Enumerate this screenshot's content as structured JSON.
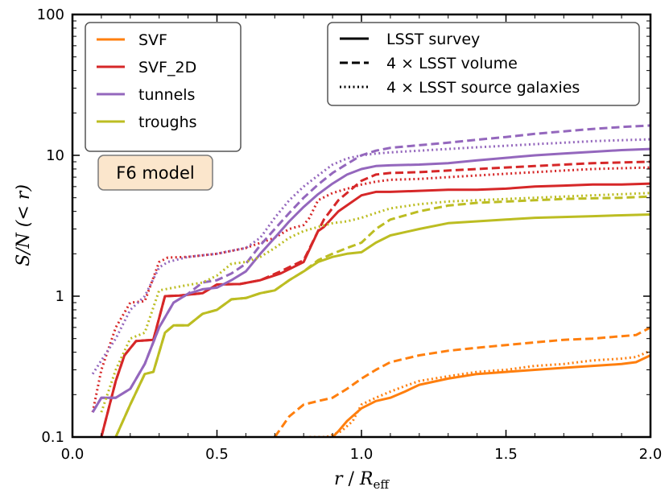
{
  "chart_data": {
    "type": "line",
    "title": "",
    "xlabel_main": "r",
    "xlabel_sep": " / ",
    "xlabel_R": "R",
    "xlabel_sub": "eff",
    "ylabel": "S/N (< r)",
    "xlim": [
      0.0,
      2.0
    ],
    "ylim": [
      0.1,
      100
    ],
    "yscale": "log",
    "x_ticks": [
      {
        "value": 0.0,
        "label": "0.0"
      },
      {
        "value": 0.5,
        "label": "0.5"
      },
      {
        "value": 1.0,
        "label": "1.0"
      },
      {
        "value": 1.5,
        "label": "1.5"
      },
      {
        "value": 2.0,
        "label": "2.0"
      }
    ],
    "y_ticks": [
      {
        "value": 0.1,
        "label": "0.1"
      },
      {
        "value": 1,
        "label": "1"
      },
      {
        "value": 10,
        "label": "10"
      },
      {
        "value": 100,
        "label": "100"
      }
    ],
    "annotation": "F6 model",
    "legend_colors": [
      {
        "label": "SVF",
        "color": "#ff7f0e"
      },
      {
        "label": "SVF_2D",
        "color": "#d62728"
      },
      {
        "label": "tunnels",
        "color": "#9467bd"
      },
      {
        "label": "troughs",
        "color": "#bcbd22"
      }
    ],
    "legend_styles": [
      {
        "label": "LSST survey",
        "dash": "solid"
      },
      {
        "label": "4 × LSST volume",
        "dash": "dashed"
      },
      {
        "label": "4 × LSST source galaxies",
        "dash": "dotted"
      }
    ],
    "series": [
      {
        "name": "SVF",
        "style": "LSST survey",
        "color": "#ff7f0e",
        "dash": "solid",
        "x": [
          0.9,
          0.92,
          0.95,
          1.0,
          1.05,
          1.1,
          1.15,
          1.2,
          1.3,
          1.4,
          1.5,
          1.6,
          1.7,
          1.8,
          1.9,
          1.95,
          2.0
        ],
        "y": [
          0.1,
          0.11,
          0.13,
          0.16,
          0.18,
          0.19,
          0.21,
          0.235,
          0.26,
          0.28,
          0.29,
          0.3,
          0.31,
          0.32,
          0.33,
          0.34,
          0.38
        ]
      },
      {
        "name": "SVF",
        "style": "4 × LSST volume",
        "color": "#ff7f0e",
        "dash": "dashed",
        "x": [
          0.7,
          0.75,
          0.8,
          0.85,
          0.9,
          0.95,
          1.0,
          1.05,
          1.1,
          1.2,
          1.3,
          1.4,
          1.5,
          1.6,
          1.7,
          1.8,
          1.9,
          1.95,
          2.0
        ],
        "y": [
          0.1,
          0.14,
          0.17,
          0.18,
          0.19,
          0.22,
          0.26,
          0.3,
          0.34,
          0.38,
          0.41,
          0.43,
          0.45,
          0.47,
          0.49,
          0.5,
          0.52,
          0.53,
          0.6
        ]
      },
      {
        "name": "SVF",
        "style": "4 × LSST source galaxies",
        "color": "#ff7f0e",
        "dash": "dotted",
        "x": [
          0.82,
          0.88,
          0.93,
          0.97,
          1.0,
          1.05,
          1.1,
          1.15,
          1.2,
          1.3,
          1.4,
          1.5,
          1.6,
          1.7,
          1.8,
          1.9,
          1.95,
          2.0
        ],
        "y": [
          0.1,
          0.1,
          0.11,
          0.13,
          0.17,
          0.19,
          0.21,
          0.23,
          0.25,
          0.27,
          0.29,
          0.3,
          0.32,
          0.33,
          0.35,
          0.36,
          0.37,
          0.41
        ]
      },
      {
        "name": "SVF_2D",
        "style": "LSST survey",
        "color": "#d62728",
        "dash": "solid",
        "x": [
          0.1,
          0.15,
          0.18,
          0.22,
          0.28,
          0.32,
          0.37,
          0.45,
          0.5,
          0.58,
          0.65,
          0.72,
          0.8,
          0.85,
          0.87,
          0.92,
          1.0,
          1.05,
          1.1,
          1.2,
          1.3,
          1.4,
          1.5,
          1.6,
          1.7,
          1.8,
          1.9,
          2.0
        ],
        "y": [
          0.1,
          0.25,
          0.38,
          0.48,
          0.49,
          1.0,
          1.01,
          1.05,
          1.21,
          1.22,
          1.3,
          1.45,
          1.75,
          2.9,
          3.1,
          4.0,
          5.2,
          5.5,
          5.5,
          5.6,
          5.7,
          5.7,
          5.8,
          6.0,
          6.1,
          6.2,
          6.2,
          6.3
        ]
      },
      {
        "name": "SVF_2D",
        "style": "4 × LSST volume",
        "color": "#d62728",
        "dash": "dashed",
        "x": [
          0.1,
          0.15,
          0.18,
          0.22,
          0.28,
          0.32,
          0.37,
          0.45,
          0.5,
          0.58,
          0.65,
          0.72,
          0.8,
          0.85,
          0.87,
          0.92,
          1.0,
          1.05,
          1.1,
          1.2,
          1.3,
          1.4,
          1.5,
          1.6,
          1.7,
          1.8,
          1.9,
          2.0
        ],
        "y": [
          0.1,
          0.25,
          0.38,
          0.48,
          0.49,
          1.0,
          1.01,
          1.05,
          1.21,
          1.22,
          1.3,
          1.5,
          1.8,
          2.9,
          3.5,
          4.8,
          6.6,
          7.3,
          7.5,
          7.6,
          7.8,
          8.0,
          8.2,
          8.4,
          8.6,
          8.8,
          8.9,
          9.0
        ]
      },
      {
        "name": "SVF_2D",
        "style": "4 × LSST source galaxies",
        "color": "#d62728",
        "dash": "dotted",
        "x": [
          0.07,
          0.1,
          0.15,
          0.2,
          0.25,
          0.3,
          0.33,
          0.4,
          0.5,
          0.6,
          0.7,
          0.75,
          0.8,
          0.82,
          0.85,
          0.9,
          1.0,
          1.05,
          1.1,
          1.2,
          1.3,
          1.4,
          1.5,
          1.6,
          1.7,
          1.8,
          1.9,
          2.0
        ],
        "y": [
          0.15,
          0.3,
          0.6,
          0.9,
          0.92,
          1.75,
          1.88,
          1.9,
          2.0,
          2.2,
          2.6,
          3.0,
          3.2,
          3.6,
          4.8,
          5.4,
          6.2,
          6.5,
          6.7,
          6.8,
          7.0,
          7.2,
          7.4,
          7.6,
          7.8,
          8.0,
          8.1,
          8.2
        ]
      },
      {
        "name": "tunnels",
        "style": "LSST survey",
        "color": "#9467bd",
        "dash": "solid",
        "x": [
          0.07,
          0.1,
          0.15,
          0.2,
          0.25,
          0.3,
          0.35,
          0.4,
          0.45,
          0.5,
          0.55,
          0.6,
          0.65,
          0.7,
          0.75,
          0.8,
          0.85,
          0.9,
          0.95,
          1.0,
          1.05,
          1.1,
          1.2,
          1.3,
          1.4,
          1.5,
          1.6,
          1.7,
          1.8,
          1.9,
          2.0
        ],
        "y": [
          0.15,
          0.19,
          0.19,
          0.22,
          0.33,
          0.6,
          0.9,
          1.04,
          1.12,
          1.15,
          1.3,
          1.5,
          2.0,
          2.6,
          3.4,
          4.3,
          5.3,
          6.3,
          7.3,
          8.0,
          8.4,
          8.5,
          8.6,
          8.8,
          9.2,
          9.6,
          10.0,
          10.3,
          10.6,
          10.9,
          11.1
        ]
      },
      {
        "name": "tunnels",
        "style": "4 × LSST volume",
        "color": "#9467bd",
        "dash": "dashed",
        "x": [
          0.07,
          0.1,
          0.15,
          0.2,
          0.25,
          0.3,
          0.35,
          0.4,
          0.45,
          0.5,
          0.55,
          0.6,
          0.65,
          0.7,
          0.75,
          0.8,
          0.85,
          0.9,
          0.95,
          1.0,
          1.05,
          1.1,
          1.2,
          1.3,
          1.4,
          1.5,
          1.6,
          1.7,
          1.8,
          1.9,
          2.0
        ],
        "y": [
          0.15,
          0.19,
          0.19,
          0.22,
          0.33,
          0.6,
          0.9,
          1.04,
          1.25,
          1.3,
          1.45,
          1.7,
          2.3,
          3.0,
          3.9,
          5.0,
          6.2,
          7.5,
          8.7,
          10.0,
          10.8,
          11.3,
          11.8,
          12.3,
          12.9,
          13.5,
          14.2,
          14.8,
          15.4,
          15.9,
          16.3
        ]
      },
      {
        "name": "tunnels",
        "style": "4 × LSST source galaxies",
        "color": "#9467bd",
        "dash": "dotted",
        "x": [
          0.07,
          0.1,
          0.15,
          0.2,
          0.25,
          0.3,
          0.33,
          0.4,
          0.45,
          0.5,
          0.55,
          0.6,
          0.65,
          0.7,
          0.75,
          0.8,
          0.85,
          0.9,
          0.95,
          1.0,
          1.05,
          1.1,
          1.2,
          1.3,
          1.4,
          1.5,
          1.6,
          1.7,
          1.8,
          1.9,
          2.0
        ],
        "y": [
          0.28,
          0.35,
          0.5,
          0.8,
          1.0,
          1.6,
          1.75,
          1.9,
          1.95,
          2.0,
          2.1,
          2.2,
          2.6,
          3.6,
          4.8,
          6.0,
          7.2,
          8.6,
          9.5,
          10.0,
          10.3,
          10.5,
          10.8,
          11.1,
          11.4,
          11.7,
          12.0,
          12.3,
          12.6,
          12.8,
          13.0
        ]
      },
      {
        "name": "troughs",
        "style": "LSST survey",
        "color": "#bcbd22",
        "dash": "solid",
        "x": [
          0.15,
          0.2,
          0.25,
          0.28,
          0.32,
          0.35,
          0.4,
          0.45,
          0.5,
          0.55,
          0.6,
          0.65,
          0.7,
          0.75,
          0.8,
          0.85,
          0.9,
          0.95,
          1.0,
          1.05,
          1.1,
          1.2,
          1.3,
          1.4,
          1.5,
          1.6,
          1.7,
          1.8,
          1.9,
          2.0
        ],
        "y": [
          0.1,
          0.17,
          0.28,
          0.29,
          0.55,
          0.62,
          0.62,
          0.75,
          0.8,
          0.95,
          0.97,
          1.05,
          1.1,
          1.3,
          1.5,
          1.75,
          1.9,
          2.0,
          2.05,
          2.4,
          2.7,
          3.0,
          3.3,
          3.4,
          3.5,
          3.6,
          3.65,
          3.7,
          3.75,
          3.8
        ]
      },
      {
        "name": "troughs",
        "style": "4 × LSST volume",
        "color": "#bcbd22",
        "dash": "dashed",
        "x": [
          0.15,
          0.2,
          0.25,
          0.28,
          0.32,
          0.35,
          0.4,
          0.45,
          0.5,
          0.55,
          0.6,
          0.65,
          0.7,
          0.75,
          0.8,
          0.85,
          0.9,
          0.95,
          1.0,
          1.05,
          1.1,
          1.2,
          1.3,
          1.4,
          1.5,
          1.6,
          1.7,
          1.8,
          1.9,
          2.0
        ],
        "y": [
          0.1,
          0.17,
          0.28,
          0.29,
          0.55,
          0.62,
          0.62,
          0.75,
          0.8,
          0.95,
          0.97,
          1.05,
          1.1,
          1.3,
          1.5,
          1.8,
          2.0,
          2.2,
          2.4,
          3.0,
          3.5,
          4.0,
          4.4,
          4.6,
          4.7,
          4.8,
          4.9,
          4.95,
          5.0,
          5.1
        ]
      },
      {
        "name": "troughs",
        "style": "4 × LSST source galaxies",
        "color": "#bcbd22",
        "dash": "dotted",
        "x": [
          0.1,
          0.15,
          0.2,
          0.25,
          0.3,
          0.35,
          0.4,
          0.45,
          0.5,
          0.55,
          0.6,
          0.65,
          0.7,
          0.75,
          0.8,
          0.85,
          0.9,
          0.95,
          1.0,
          1.05,
          1.1,
          1.2,
          1.3,
          1.4,
          1.5,
          1.6,
          1.7,
          1.8,
          1.9,
          2.0
        ],
        "y": [
          0.15,
          0.3,
          0.5,
          0.55,
          1.1,
          1.15,
          1.2,
          1.25,
          1.4,
          1.7,
          1.75,
          1.9,
          2.2,
          2.6,
          2.9,
          3.1,
          3.3,
          3.4,
          3.6,
          3.9,
          4.2,
          4.5,
          4.7,
          4.8,
          4.9,
          5.0,
          5.1,
          5.2,
          5.3,
          5.4
        ]
      }
    ]
  }
}
